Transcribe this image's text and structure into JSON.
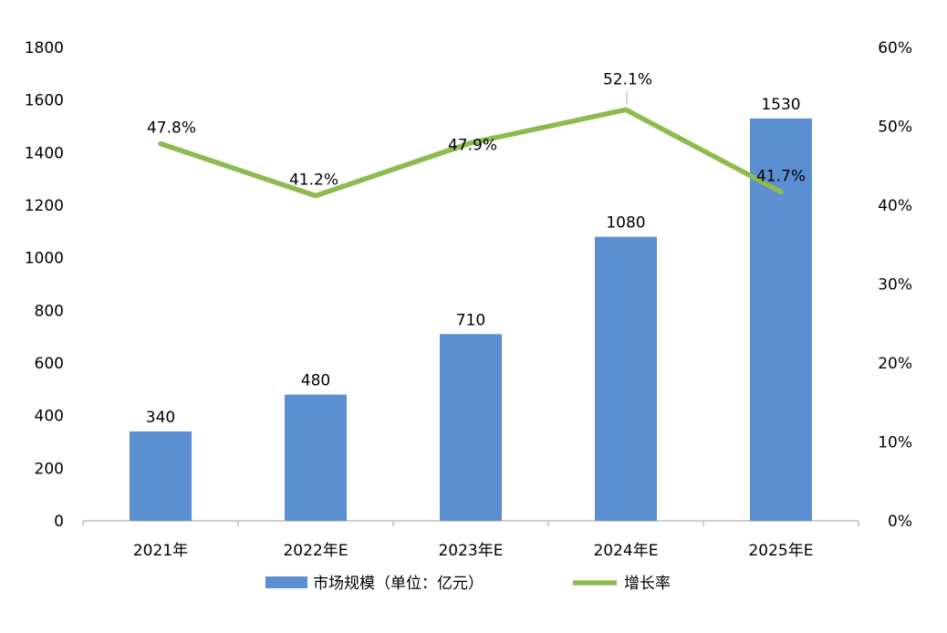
{
  "chart_data": {
    "type": "bar",
    "categories": [
      "2021年",
      "2022年E",
      "2023年E",
      "2024年E",
      "2025年E"
    ],
    "series": [
      {
        "name": "市场规模（单位：亿元）",
        "type": "bar",
        "axis": "left",
        "values": [
          340,
          480,
          710,
          1080,
          1530
        ],
        "value_labels": [
          "340",
          "480",
          "710",
          "1080",
          "1530"
        ],
        "color": "#5B8FD2"
      },
      {
        "name": "增长率",
        "type": "line",
        "axis": "right",
        "values": [
          47.8,
          41.2,
          47.9,
          52.1,
          41.7
        ],
        "value_labels": [
          "47.8%",
          "41.2%",
          "47.9%",
          "52.1%",
          "41.7%"
        ],
        "color": "#8DBB4F"
      }
    ],
    "y_left": {
      "ylim": [
        0,
        1800
      ],
      "ticks": [
        0,
        200,
        400,
        600,
        800,
        1000,
        1200,
        1400,
        1600,
        1800
      ],
      "tick_labels": [
        "0",
        "200",
        "400",
        "600",
        "800",
        "1000",
        "1200",
        "1400",
        "1600",
        "1800"
      ]
    },
    "y_right": {
      "ylim": [
        0,
        60
      ],
      "ticks": [
        0,
        10,
        20,
        30,
        40,
        50,
        60
      ],
      "tick_labels": [
        "0%",
        "10%",
        "20%",
        "30%",
        "40%",
        "50%",
        "60%"
      ]
    },
    "grid": false,
    "legend_position": "bottom"
  }
}
